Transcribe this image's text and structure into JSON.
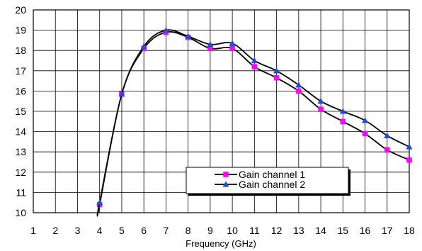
{
  "chart_data": {
    "type": "line",
    "title": "",
    "xlabel": "Frequency (GHz)",
    "ylabel": "",
    "xlim": [
      1,
      18
    ],
    "ylim": [
      10,
      20
    ],
    "xticks": [
      "1",
      "2",
      "3",
      "4",
      "5",
      "6",
      "7",
      "8",
      "9",
      "10",
      "11",
      "12",
      "13",
      "14",
      "15",
      "16",
      "17",
      "18"
    ],
    "yticks": [
      "10",
      "11",
      "12",
      "13",
      "14",
      "15",
      "16",
      "17",
      "18",
      "19",
      "20"
    ],
    "grid": true,
    "legend_position": "bottom-center",
    "series": [
      {
        "name": "Gain channel 1",
        "marker": "square",
        "marker_color": "#ff00ff",
        "line_color": "#000000",
        "points": [
          [
            4,
            10.4
          ],
          [
            5,
            15.85
          ],
          [
            6,
            18.1
          ],
          [
            7,
            18.9
          ],
          [
            8,
            18.65
          ],
          [
            9,
            18.1
          ],
          [
            10,
            18.1
          ],
          [
            11,
            17.2
          ],
          [
            12,
            16.65
          ],
          [
            13,
            16.0
          ],
          [
            14,
            15.1
          ],
          [
            15,
            14.5
          ],
          [
            16,
            13.9
          ],
          [
            17,
            13.1
          ],
          [
            18,
            12.6
          ]
        ]
      },
      {
        "name": "Gain channel 2",
        "marker": "triangle",
        "marker_color": "#1f4fd6",
        "line_color": "#000000",
        "points": [
          [
            4,
            10.5
          ],
          [
            5,
            15.85
          ],
          [
            6,
            18.2
          ],
          [
            7,
            19.0
          ],
          [
            8,
            18.7
          ],
          [
            9,
            18.3
          ],
          [
            10,
            18.35
          ],
          [
            11,
            17.5
          ],
          [
            12,
            17.0
          ],
          [
            13,
            16.3
          ],
          [
            14,
            15.5
          ],
          [
            15,
            15.0
          ],
          [
            16,
            14.55
          ],
          [
            17,
            13.8
          ],
          [
            18,
            13.25
          ]
        ]
      }
    ]
  }
}
